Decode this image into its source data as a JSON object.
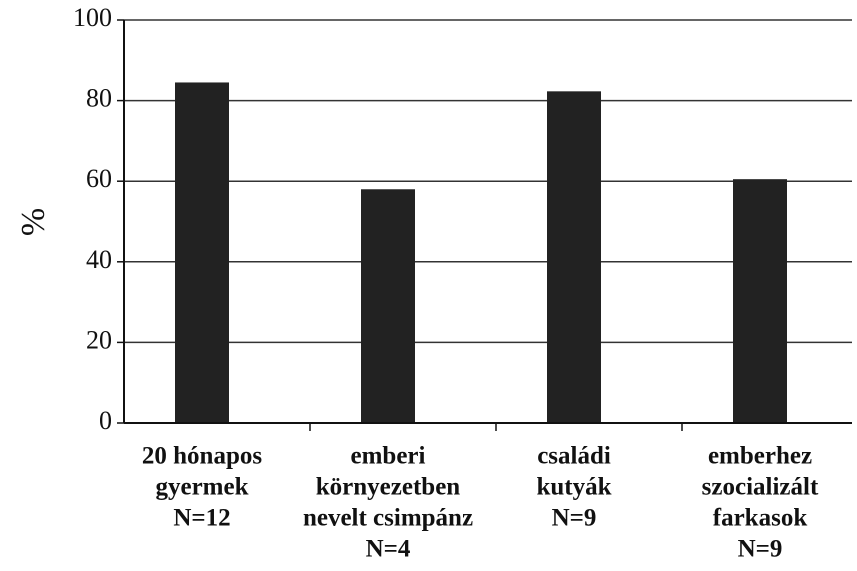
{
  "chart_data": {
    "type": "bar",
    "ylabel": "%",
    "categories": [
      [
        "20 hónapos",
        "gyermek",
        "N=12"
      ],
      [
        "emberi",
        "környezetben",
        "nevelt csimpánz",
        "N=4"
      ],
      [
        "családi",
        "kutyák",
        "N=9"
      ],
      [
        "emberhez",
        "szocializált",
        "farkasok",
        "N=9"
      ]
    ],
    "values": [
      84.5,
      58,
      82.3,
      60.5
    ],
    "color": "#222222",
    "ylim": [
      0,
      100
    ],
    "yticks": [
      0,
      20,
      40,
      60,
      80,
      100
    ],
    "grid": true
  }
}
